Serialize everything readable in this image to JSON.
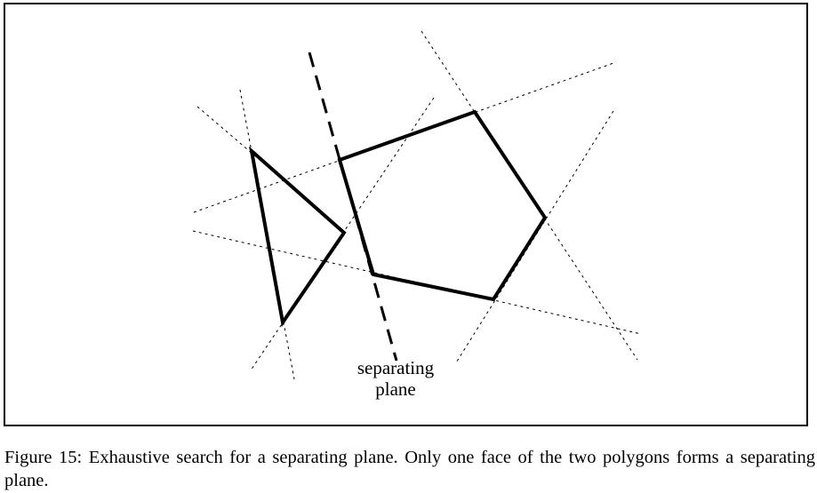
{
  "diagram": {
    "separating_plane_label_line1": "separating",
    "separating_plane_label_line2": "plane",
    "line_color": "#000000",
    "background_color": "#ffffff"
  },
  "caption": {
    "text": "Figure 15: Exhaustive search for a separating plane. Only one face of the two polygons forms a separating plane."
  }
}
